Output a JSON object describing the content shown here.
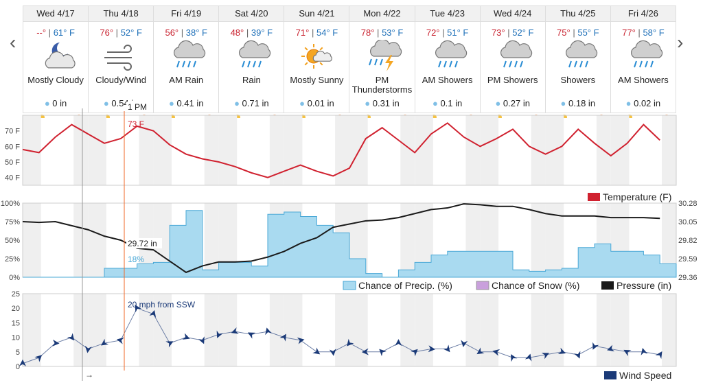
{
  "nav": {
    "prev": "‹",
    "next": "›"
  },
  "days": [
    {
      "name": "Wed 4/17",
      "hi": "--°",
      "lo": "61° F",
      "cond": "Mostly Cloudy",
      "precip": "0 in",
      "icon": "partly-cloudy-night-icon"
    },
    {
      "name": "Thu 4/18",
      "hi": "76°",
      "lo": "52° F",
      "cond": "Cloudy/Wind",
      "precip": "0.54 in",
      "icon": "wind-icon"
    },
    {
      "name": "Fri 4/19",
      "hi": "56°",
      "lo": "38° F",
      "cond": "AM Rain",
      "precip": "0.41 in",
      "icon": "rain-icon"
    },
    {
      "name": "Sat 4/20",
      "hi": "48°",
      "lo": "39° F",
      "cond": "Rain",
      "precip": "0.71 in",
      "icon": "rain-icon"
    },
    {
      "name": "Sun 4/21",
      "hi": "71°",
      "lo": "54° F",
      "cond": "Mostly Sunny",
      "precip": "0.01 in",
      "icon": "sun-cloud-icon"
    },
    {
      "name": "Mon 4/22",
      "hi": "78°",
      "lo": "53° F",
      "cond": "PM Thunderstorms",
      "precip": "0.31 in",
      "icon": "thunderstorm-icon"
    },
    {
      "name": "Tue 4/23",
      "hi": "72°",
      "lo": "51° F",
      "cond": "AM Showers",
      "precip": "0.1 in",
      "icon": "showers-icon"
    },
    {
      "name": "Wed 4/24",
      "hi": "73°",
      "lo": "52° F",
      "cond": "PM Showers",
      "precip": "0.27 in",
      "icon": "showers-icon"
    },
    {
      "name": "Thu 4/25",
      "hi": "75°",
      "lo": "55° F",
      "cond": "Showers",
      "precip": "0.18 in",
      "icon": "showers-icon"
    },
    {
      "name": "Fri 4/26",
      "hi": "77°",
      "lo": "58° F",
      "cond": "AM Showers",
      "precip": "0.02 in",
      "icon": "showers-icon"
    }
  ],
  "colors": {
    "temp": "#d0212f",
    "precip_fill": "#a9daf0",
    "precip_line": "#4aa8d6",
    "snow": "#c9a0dc",
    "pressure": "#1a1a1a",
    "wind": "#1b3a78",
    "cursor": "#f06a2a",
    "hi": "#c8202d",
    "lo": "#1d6fb8"
  },
  "cursor": {
    "time": "1 PM",
    "temp": "73 F",
    "pressure": "29.72 in",
    "precip": "18%",
    "wind": "20 mph from SSW",
    "arrow": "→"
  },
  "chart_data": [
    {
      "type": "line",
      "title": "Temperature",
      "ylim": [
        35,
        80
      ],
      "yticks": [
        "40 F",
        "50 F",
        "60 F",
        "70 F"
      ],
      "ytick_values": [
        40,
        50,
        60,
        70
      ],
      "legend": "Temperature (F)",
      "x_hours": [
        0,
        6,
        12,
        18,
        24,
        30,
        36,
        42,
        48,
        54,
        60,
        66,
        72,
        78,
        84,
        90,
        96,
        102,
        108,
        114,
        120,
        126,
        132,
        138,
        144,
        150,
        156,
        162,
        168,
        174,
        180,
        186,
        192,
        198,
        204,
        210,
        216,
        222,
        228,
        234
      ],
      "values": [
        58,
        56,
        66,
        74,
        68,
        62,
        65,
        73,
        70,
        61,
        55,
        52,
        50,
        47,
        43,
        40,
        44,
        48,
        44,
        41,
        46,
        65,
        72,
        64,
        56,
        68,
        75,
        66,
        60,
        65,
        71,
        60,
        55,
        60,
        71,
        62,
        54,
        62,
        74,
        64
      ]
    },
    {
      "type": "area",
      "title": "Precipitation / Pressure",
      "yticks_left": [
        "0%",
        "25%",
        "50%",
        "75%",
        "100%"
      ],
      "yticks_right": [
        "29.36",
        "29.59",
        "29.82",
        "30.05",
        "30.28"
      ],
      "legend": [
        "Chance of Precip. (%)",
        "Chance of Snow (%)",
        "Pressure (in)"
      ],
      "x_hours": [
        0,
        6,
        12,
        18,
        24,
        30,
        36,
        42,
        48,
        54,
        60,
        66,
        72,
        78,
        84,
        90,
        96,
        102,
        108,
        114,
        120,
        126,
        132,
        138,
        144,
        150,
        156,
        162,
        168,
        174,
        180,
        186,
        192,
        198,
        204,
        210,
        216,
        222,
        228,
        234
      ],
      "precip": [
        0,
        0,
        0,
        0,
        0,
        12,
        12,
        18,
        20,
        70,
        90,
        10,
        20,
        20,
        15,
        85,
        88,
        82,
        70,
        60,
        25,
        5,
        0,
        10,
        20,
        30,
        35,
        35,
        35,
        35,
        10,
        8,
        10,
        12,
        40,
        45,
        35,
        35,
        30,
        18
      ],
      "pressure": [
        30.05,
        30.04,
        30.05,
        30.0,
        29.95,
        29.87,
        29.82,
        29.72,
        29.7,
        29.56,
        29.42,
        29.5,
        29.55,
        29.55,
        29.56,
        29.61,
        29.68,
        29.78,
        29.85,
        29.98,
        30.02,
        30.06,
        30.07,
        30.1,
        30.15,
        30.2,
        30.22,
        30.27,
        30.26,
        30.24,
        30.24,
        30.2,
        30.15,
        30.12,
        30.12,
        30.12,
        30.1,
        30.1,
        30.1,
        30.09
      ]
    },
    {
      "type": "line",
      "title": "Wind Speed",
      "ylim": [
        0,
        25
      ],
      "yticks": [
        "0",
        "5",
        "10",
        "15",
        "20",
        "25"
      ],
      "ytick_values": [
        0,
        5,
        10,
        15,
        20,
        25
      ],
      "legend": "Wind Speed",
      "x_hours": [
        0,
        6,
        12,
        18,
        24,
        30,
        36,
        42,
        48,
        54,
        60,
        66,
        72,
        78,
        84,
        90,
        96,
        102,
        108,
        114,
        120,
        126,
        132,
        138,
        144,
        150,
        156,
        162,
        168,
        174,
        180,
        186,
        192,
        198,
        204,
        210,
        216,
        222,
        228,
        234
      ],
      "values": [
        1,
        3,
        8,
        10,
        6,
        8,
        9,
        20,
        18,
        8,
        10,
        9,
        11,
        12,
        11,
        12,
        10,
        9,
        5,
        5,
        8,
        5,
        5,
        8,
        5,
        6,
        6,
        8,
        5,
        5,
        3,
        3,
        4,
        5,
        4,
        7,
        6,
        5,
        5,
        4
      ]
    }
  ]
}
